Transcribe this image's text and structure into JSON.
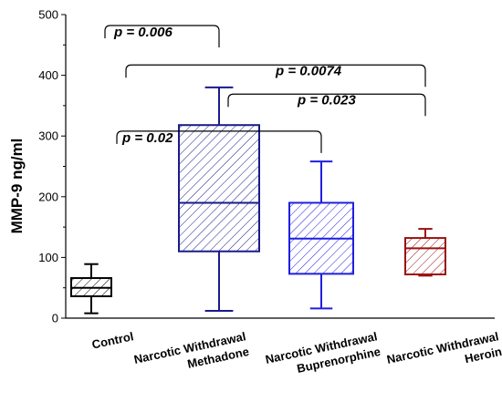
{
  "chart_data": {
    "type": "box",
    "ylabel": "MMP-9 ng/ml",
    "ylim": [
      0,
      500
    ],
    "yticks": [
      0,
      100,
      200,
      300,
      400,
      500
    ],
    "categories": [
      [
        "Control"
      ],
      [
        "Narcotic Withdrawal",
        "Methadone"
      ],
      [
        "Narcotic Withdrawal",
        "Buprenorphine"
      ],
      [
        "Narcotic Withdrawal",
        "Heroin"
      ]
    ],
    "boxes": [
      {
        "min": 8,
        "q1": 36,
        "median": 50,
        "q3": 66,
        "max": 89,
        "color": "#000000"
      },
      {
        "min": 12,
        "q1": 110,
        "median": 190,
        "q3": 318,
        "max": 380,
        "color": "#1a1a8c"
      },
      {
        "min": 16,
        "q1": 73,
        "median": 131,
        "q3": 190,
        "max": 258,
        "color": "#1f1fe0"
      },
      {
        "min": 70,
        "q1": 72,
        "median": 115,
        "q3": 132,
        "max": 147,
        "color": "#9b1010"
      }
    ],
    "comparisons": [
      {
        "from": 0,
        "to": 1,
        "label": "p = 0.006"
      },
      {
        "from": 0,
        "to": 3,
        "label": "p = 0.0074"
      },
      {
        "from": 1,
        "to": 3,
        "label": "p = 0.023"
      },
      {
        "from": 0,
        "to": 2,
        "label": "p = 0.02"
      }
    ]
  }
}
